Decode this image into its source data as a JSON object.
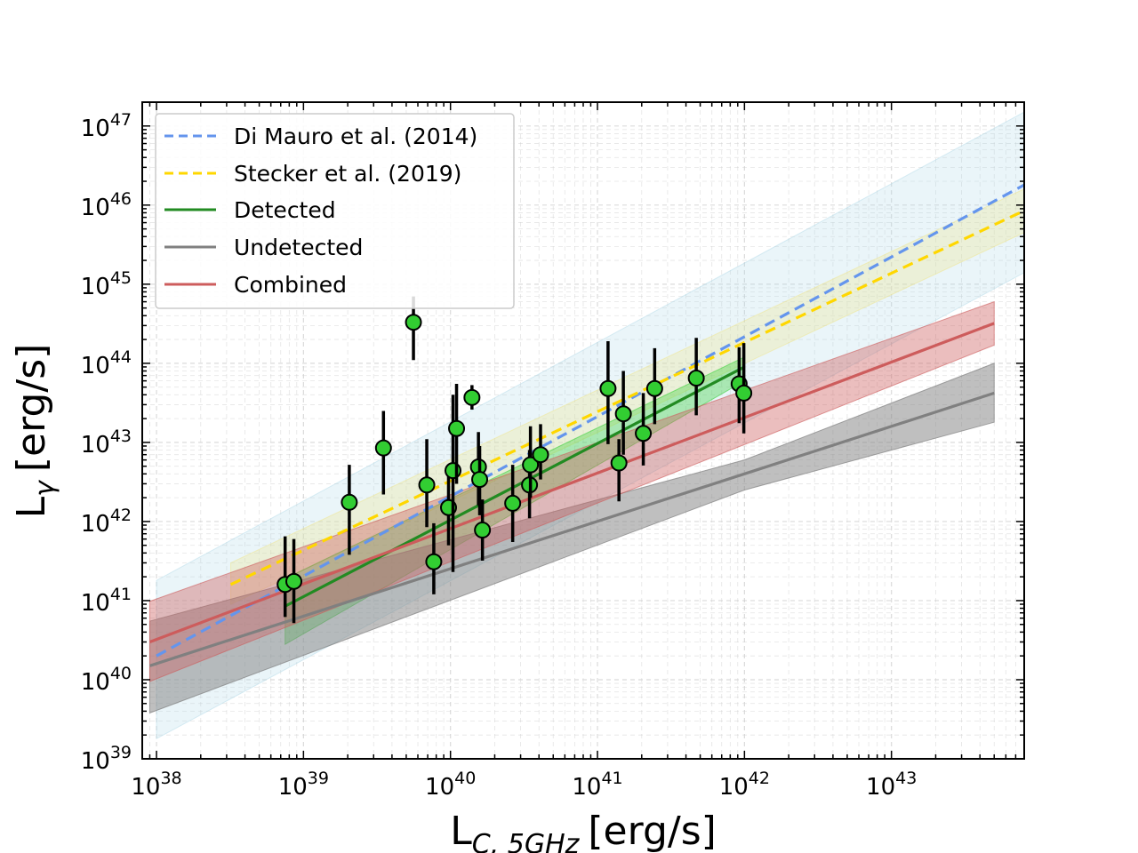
{
  "chart_data": {
    "type": "scatter",
    "xscale": "log",
    "yscale": "log",
    "xlim": [
      8e+37,
      8e+43
    ],
    "ylim": [
      1e+39,
      2e+47
    ],
    "xlabel": "L_C,5GHz [erg/s]",
    "xlabel_main": "L",
    "xlabel_sub": "C, 5GHz",
    "xlabel_unit": "[erg/s]",
    "ylabel": "L_γ [erg/s]",
    "ylabel_main": "L",
    "ylabel_sub": "γ",
    "ylabel_unit": "[erg/s]",
    "x_ticks": [
      {
        "value": 1e+38,
        "base": "10",
        "exp": "38"
      },
      {
        "value": 1e+39,
        "base": "10",
        "exp": "39"
      },
      {
        "value": 1e+40,
        "base": "10",
        "exp": "40"
      },
      {
        "value": 1e+41,
        "base": "10",
        "exp": "41"
      },
      {
        "value": 1e+42,
        "base": "10",
        "exp": "42"
      },
      {
        "value": 1e+43,
        "base": "10",
        "exp": "43"
      }
    ],
    "y_ticks": [
      {
        "value": 1e+39,
        "base": "10",
        "exp": "39"
      },
      {
        "value": 1e+40,
        "base": "10",
        "exp": "40"
      },
      {
        "value": 1e+41,
        "base": "10",
        "exp": "41"
      },
      {
        "value": 1e+42,
        "base": "10",
        "exp": "42"
      },
      {
        "value": 1e+43,
        "base": "10",
        "exp": "43"
      },
      {
        "value": 1e+44,
        "base": "10",
        "exp": "44"
      },
      {
        "value": 1e+45,
        "base": "10",
        "exp": "45"
      },
      {
        "value": 1e+46,
        "base": "10",
        "exp": "46"
      },
      {
        "value": 1e+47,
        "base": "10",
        "exp": "47"
      }
    ],
    "grid": true,
    "legend_position": "top-left",
    "series": [
      {
        "name": "Di Mauro et al. (2014)",
        "kind": "line",
        "style": "dashed",
        "color": "#6495ed",
        "x": [
          1e+38,
          8e+43
        ],
        "y": [
          2e+40,
          1.8e+46
        ],
        "band": {
          "x": [
            1e+38,
            8e+43
          ],
          "lower": [
            1.8e+39,
            1.4e+45
          ],
          "upper": [
            1.8e+41,
            1.5e+47
          ],
          "color": "#add8e6",
          "opacity": 0.25
        }
      },
      {
        "name": "Stecker et al. (2019)",
        "kind": "line",
        "style": "dashed",
        "color": "#ffd700",
        "x": [
          3.2e+38,
          8e+43
        ],
        "y": [
          1.6e+41,
          8.5e+45
        ],
        "band": {
          "x": [
            3.2e+38,
            8e+43
          ],
          "lower": [
            9e+40,
            4.5e+45
          ],
          "upper": [
            3e+41,
            1.6e+46
          ],
          "color": "#f0e68c",
          "opacity": 0.3
        }
      },
      {
        "name": "Detected",
        "kind": "line",
        "style": "solid",
        "color": "#228b22",
        "x": [
          7.5e+38,
          1e+42
        ],
        "y": [
          8.5e+40,
          9e+43
        ],
        "band": {
          "x": [
            7.5e+38,
            1e+42
          ],
          "lower": [
            2.8e+40,
            6e+43
          ],
          "upper": [
            1.9e+41,
            1.2e+44
          ],
          "color": "#32cd32",
          "opacity": 0.35
        }
      },
      {
        "name": "Undetected",
        "kind": "line",
        "style": "solid",
        "color": "#808080",
        "x": [
          9e+37,
          1e+42,
          5e+43
        ],
        "y": [
          1.5e+40,
          4e+42,
          4.2e+43
        ],
        "band": {
          "x": [
            9e+37,
            1e+42,
            5e+43
          ],
          "lower": [
            3.8e+39,
            2.5e+42,
            1.8e+43
          ],
          "upper": [
            5.5e+40,
            6e+42,
            1e+44
          ],
          "color": "#808080",
          "opacity": 0.5
        }
      },
      {
        "name": "Combined",
        "kind": "line",
        "style": "solid",
        "color": "#cd5c5c",
        "x": [
          9e+37,
          5e+43
        ],
        "y": [
          3e+40,
          3.2e+44
        ],
        "band": {
          "x": [
            9e+37,
            5e+43
          ],
          "lower": [
            9.5e+39,
            1.7e+44
          ],
          "upper": [
            9.8e+40,
            6e+44
          ],
          "color": "#cd5c5c",
          "opacity": 0.4
        }
      }
    ],
    "points": {
      "name": "data",
      "color": "#32cd32",
      "edgecolor": "#000000",
      "data": [
        {
          "x": 7.5e+38,
          "y": 1.6e+41,
          "ylo": 6.2e+40,
          "yhi": 6.5e+41
        },
        {
          "x": 8.6e+38,
          "y": 1.75e+41,
          "ylo": 5.2e+40,
          "yhi": 6e+41
        },
        {
          "x": 2.05e+39,
          "y": 1.75e+42,
          "ylo": 3.8e+41,
          "yhi": 5.2e+42
        },
        {
          "x": 3.5e+39,
          "y": 8.5e+42,
          "ylo": 2.2e+42,
          "yhi": 2.5e+43
        },
        {
          "x": 5.6e+39,
          "y": 3.3e+44,
          "ylo": 1.1e+44,
          "yhi": 7e+44
        },
        {
          "x": 6.9e+39,
          "y": 2.9e+42,
          "ylo": 8.5e+41,
          "yhi": 1.1e+43
        },
        {
          "x": 7.7e+39,
          "y": 3.1e+41,
          "ylo": 1.2e+41,
          "yhi": 9.5e+41
        },
        {
          "x": 9.7e+39,
          "y": 1.5e+42,
          "ylo": 5e+41,
          "yhi": 4.5e+42
        },
        {
          "x": 1.04e+40,
          "y": 4.4e+42,
          "ylo": 2.3e+41,
          "yhi": 4e+43
        },
        {
          "x": 1.1e+40,
          "y": 1.5e+43,
          "ylo": 3e+42,
          "yhi": 5.5e+43
        },
        {
          "x": 1.4e+40,
          "y": 3.7e+43,
          "ylo": 2.6e+43,
          "yhi": 5.3e+43
        },
        {
          "x": 1.55e+40,
          "y": 4.9e+42,
          "ylo": 1.6e+42,
          "yhi": 1.35e+43
        },
        {
          "x": 1.58e+40,
          "y": 3.4e+42,
          "ylo": 1.2e+42,
          "yhi": 9e+42
        },
        {
          "x": 1.65e+40,
          "y": 7.8e+41,
          "ylo": 3.2e+41,
          "yhi": 1.9e+42
        },
        {
          "x": 2.65e+40,
          "y": 1.7e+42,
          "ylo": 5.5e+41,
          "yhi": 5.2e+42
        },
        {
          "x": 3.45e+40,
          "y": 2.9e+42,
          "ylo": 1.1e+42,
          "yhi": 8e+42
        },
        {
          "x": 3.5e+40,
          "y": 5.2e+42,
          "ylo": 2e+42,
          "yhi": 1.6e+43
        },
        {
          "x": 4.1e+40,
          "y": 7e+42,
          "ylo": 3.4e+42,
          "yhi": 1.7e+43
        },
        {
          "x": 1.18e+41,
          "y": 4.8e+43,
          "ylo": 9.5e+42,
          "yhi": 1.9e+44
        },
        {
          "x": 1.4e+41,
          "y": 5.5e+42,
          "ylo": 1.8e+42,
          "yhi": 1.1e+43
        },
        {
          "x": 1.5e+41,
          "y": 2.3e+43,
          "ylo": 7e+42,
          "yhi": 8e+43
        },
        {
          "x": 2.05e+41,
          "y": 1.3e+43,
          "ylo": 5.1e+42,
          "yhi": 4.2e+43
        },
        {
          "x": 2.45e+41,
          "y": 4.8e+43,
          "ylo": 1.7e+43,
          "yhi": 1.55e+44
        },
        {
          "x": 4.7e+41,
          "y": 6.5e+43,
          "ylo": 2.2e+43,
          "yhi": 2.1e+44
        },
        {
          "x": 9.2e+41,
          "y": 5.5e+43,
          "ylo": 1.75e+43,
          "yhi": 1.6e+44
        },
        {
          "x": 9.9e+41,
          "y": 4.2e+43,
          "ylo": 1.3e+43,
          "yhi": 1.8e+44
        }
      ]
    }
  }
}
